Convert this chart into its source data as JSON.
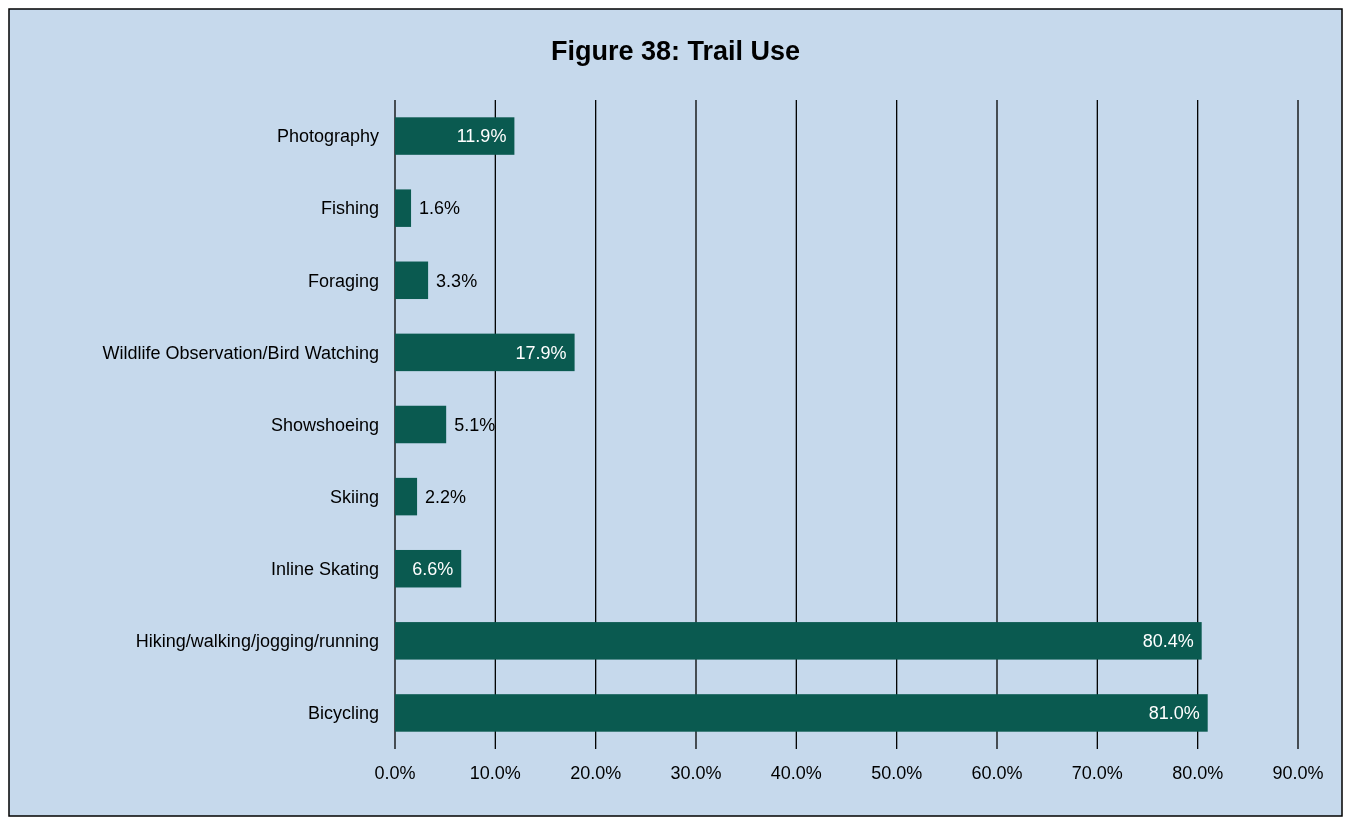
{
  "chart_data": {
    "type": "bar",
    "orientation": "horizontal",
    "title": "Figure 38: Trail Use",
    "categories": [
      "Photography",
      "Fishing",
      "Foraging",
      "Wildlife Observation/Bird Watching",
      "Showshoeing",
      "Skiing",
      "Inline Skating",
      "Hiking/walking/jogging/running",
      "Bicycling"
    ],
    "values": [
      11.9,
      1.6,
      3.3,
      17.9,
      5.1,
      2.2,
      6.6,
      80.4,
      81.0
    ],
    "value_labels": [
      "11.9%",
      "1.6%",
      "3.3%",
      "17.9%",
      "5.1%",
      "2.2%",
      "6.6%",
      "80.4%",
      "81.0%"
    ],
    "color": "#0a5a50",
    "xlim": [
      0,
      90
    ],
    "xticks": [
      {
        "value": 0,
        "label": "0.0%"
      },
      {
        "value": 10,
        "label": "10.0%"
      },
      {
        "value": 20,
        "label": "20.0%"
      },
      {
        "value": 30,
        "label": "30.0%"
      },
      {
        "value": 40,
        "label": "40.0%"
      },
      {
        "value": 50,
        "label": "50.0%"
      },
      {
        "value": 60,
        "label": "60.0%"
      },
      {
        "value": 70,
        "label": "70.0%"
      },
      {
        "value": 80,
        "label": "80.0%"
      },
      {
        "value": 90,
        "label": "90.0%"
      }
    ],
    "grid": "x"
  }
}
